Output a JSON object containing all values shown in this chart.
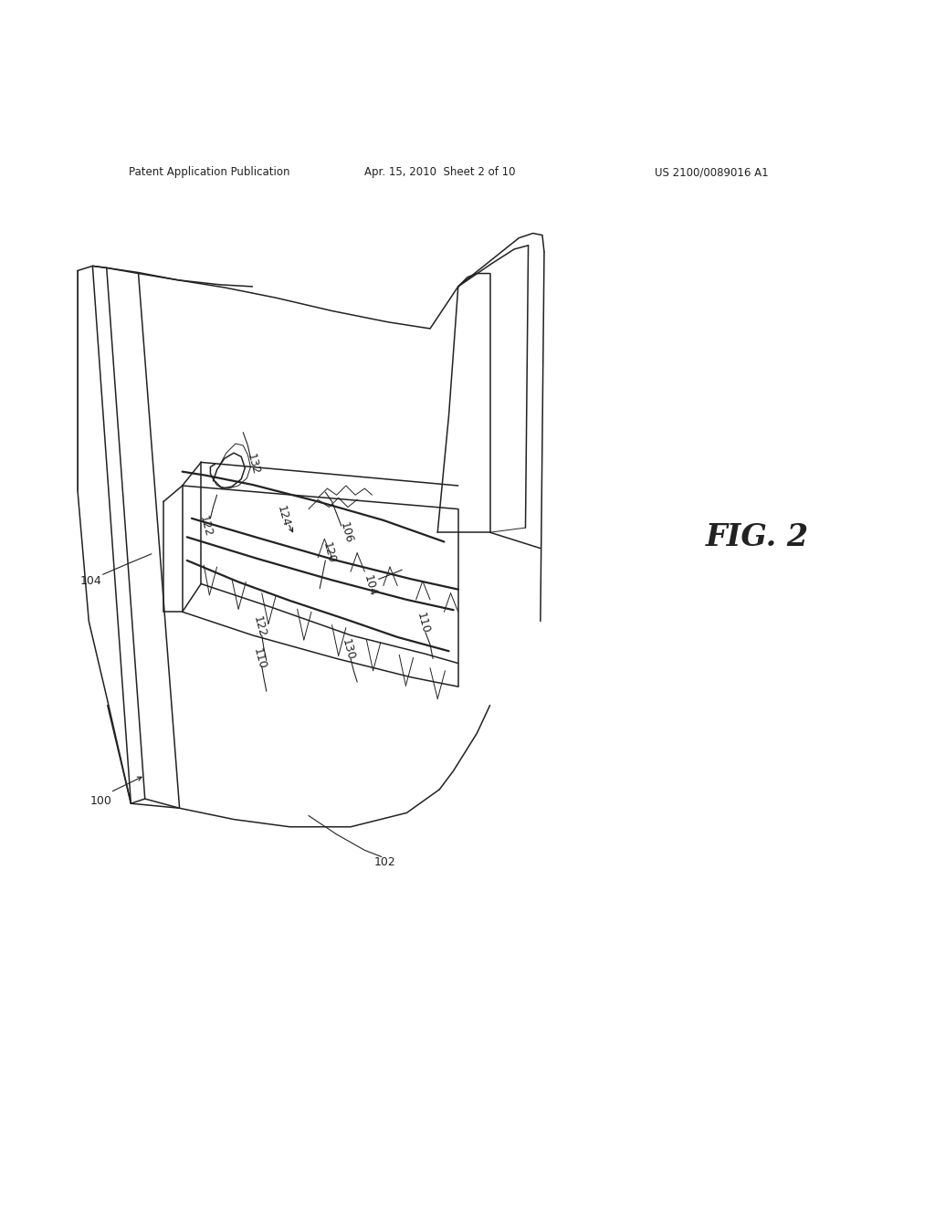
{
  "bg_color": "#ffffff",
  "line_color": "#222222",
  "header_left": "Patent Application Publication",
  "header_center": "Apr. 15, 2010  Sheet 2 of 10",
  "header_right": "US 2100/0089016 A1",
  "fig_label": "FIG. 2"
}
